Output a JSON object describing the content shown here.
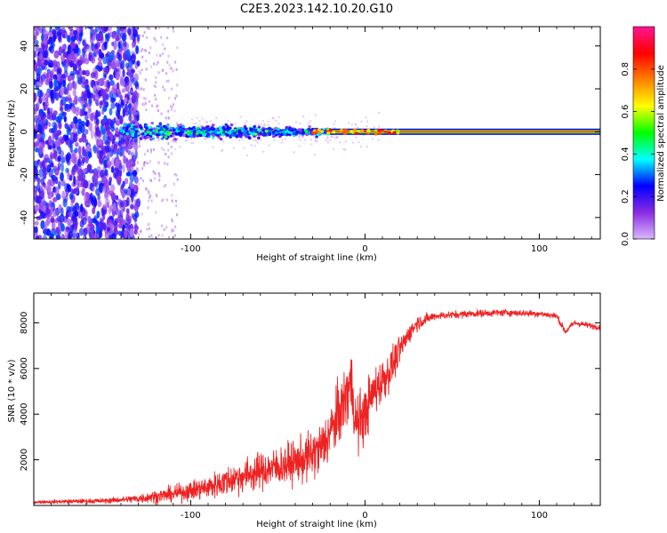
{
  "title": "C2E3.2023.142.10.20.G10",
  "colors": {
    "snr_line": "#ee2222",
    "scatter_noise": "#8a2be2",
    "signal_core": "#dd2200"
  },
  "chart_data": [
    {
      "type": "heatmap",
      "name": "spectrogram",
      "xlabel": "Height of straight line (km)",
      "ylabel": "Frequency (Hz)",
      "xlim": [
        -190,
        135
      ],
      "ylim": [
        -50,
        49
      ],
      "x_ticks": [
        "-100",
        "0",
        "100"
      ],
      "x_tick_values": [
        -100,
        0,
        100
      ],
      "y_ticks": [
        "40",
        "20",
        "0",
        "-20",
        "-40"
      ],
      "y_tick_values": [
        40,
        20,
        0,
        -20,
        -40
      ],
      "signal_frequency": 0,
      "colorbar": {
        "label": "Normalized spectral amplitude",
        "range": [
          0,
          1
        ],
        "ticks": [
          "0.0",
          "0.2",
          "0.4",
          "0.6",
          "0.8"
        ],
        "tick_values": [
          0,
          0.2,
          0.4,
          0.6,
          0.8
        ],
        "colors": [
          "#d8b8ff",
          "#8a2be2",
          "#0000ff",
          "#00ffff",
          "#00ff00",
          "#ffff00",
          "#ff8000",
          "#ff0000",
          "#ff1493"
        ]
      },
      "description_regions": [
        {
          "x_range": [
            -190,
            -140
          ],
          "freq_spread": 50,
          "amplitude": 0.15
        },
        {
          "x_range": [
            -140,
            -20
          ],
          "freq_spread": 6,
          "amplitude": 0.35
        },
        {
          "x_range": [
            -20,
            135
          ],
          "freq_spread": 1,
          "amplitude": 0.8
        }
      ]
    },
    {
      "type": "line",
      "name": "snr",
      "xlabel": "Height of straight line (km)",
      "ylabel": "SNR (10 * v/v)",
      "xlim": [
        -190,
        135
      ],
      "ylim": [
        0,
        9300
      ],
      "x_ticks": [
        "-100",
        "0",
        "100"
      ],
      "x_tick_values": [
        -100,
        0,
        100
      ],
      "y_ticks": [
        "8000",
        "6000",
        "4000",
        "2000"
      ],
      "y_tick_values": [
        8000,
        6000,
        4000,
        2000
      ],
      "trend": {
        "x": [
          -190,
          -150,
          -130,
          -110,
          -90,
          -70,
          -50,
          -35,
          -25,
          -18,
          -12,
          -8,
          -5,
          0,
          5,
          10,
          15,
          20,
          25,
          30,
          40,
          60,
          80,
          100,
          110,
          115,
          120,
          135
        ],
        "y": [
          150,
          200,
          300,
          500,
          800,
          1300,
          1700,
          2000,
          2500,
          3500,
          4500,
          5500,
          3500,
          4000,
          5000,
          5500,
          6000,
          6800,
          7500,
          8000,
          8300,
          8400,
          8450,
          8400,
          8300,
          7600,
          8000,
          7800
        ]
      },
      "noise_amplitude": {
        "x": [
          -190,
          -140,
          -100,
          -70,
          -40,
          -20,
          -10,
          0,
          15,
          25,
          40,
          135
        ],
        "y": [
          80,
          150,
          500,
          900,
          1100,
          1500,
          1800,
          1500,
          1000,
          500,
          200,
          150
        ]
      }
    }
  ]
}
